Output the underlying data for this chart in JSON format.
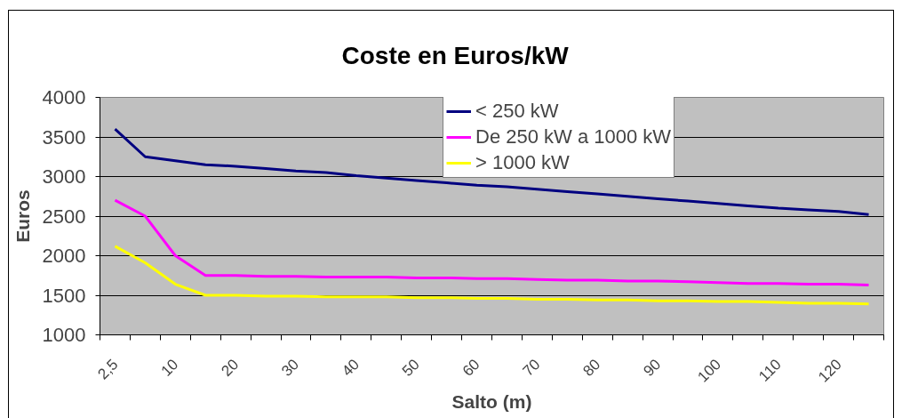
{
  "chart_data": {
    "type": "line",
    "title": "Coste en Euros/kW",
    "xlabel": "Salto (m)",
    "ylabel": "Euros",
    "categories": [
      "2,5",
      null,
      "10",
      null,
      "20",
      null,
      "30",
      null,
      "40",
      null,
      "50",
      null,
      "60",
      null,
      "70",
      null,
      "80",
      null,
      "90",
      null,
      "100",
      null,
      "110",
      null,
      "120",
      null
    ],
    "series": [
      {
        "name": "< 250 kW",
        "color": "#000080",
        "values": [
          3600,
          3250,
          3200,
          3150,
          3130,
          3100,
          3070,
          3050,
          3010,
          2980,
          2950,
          2920,
          2890,
          2870,
          2840,
          2810,
          2780,
          2750,
          2720,
          2690,
          2660,
          2630,
          2600,
          2580,
          2560,
          2520
        ]
      },
      {
        "name": "De 250 kW a 1000 kW",
        "color": "#ff00ff",
        "values": [
          2700,
          2500,
          2000,
          1750,
          1750,
          1740,
          1740,
          1730,
          1730,
          1730,
          1720,
          1720,
          1710,
          1710,
          1700,
          1690,
          1690,
          1680,
          1680,
          1670,
          1660,
          1650,
          1650,
          1640,
          1640,
          1630
        ]
      },
      {
        "name": "> 1000 kW",
        "color": "#ffff00",
        "values": [
          2120,
          1910,
          1640,
          1500,
          1500,
          1490,
          1490,
          1480,
          1480,
          1480,
          1470,
          1470,
          1460,
          1460,
          1450,
          1450,
          1440,
          1440,
          1430,
          1430,
          1420,
          1420,
          1410,
          1400,
          1400,
          1390
        ]
      }
    ],
    "ylim": [
      1000,
      4000
    ],
    "yticks": [
      1000,
      1500,
      2000,
      2500,
      3000,
      3500,
      4000
    ],
    "grid": "y",
    "legend": "top"
  }
}
